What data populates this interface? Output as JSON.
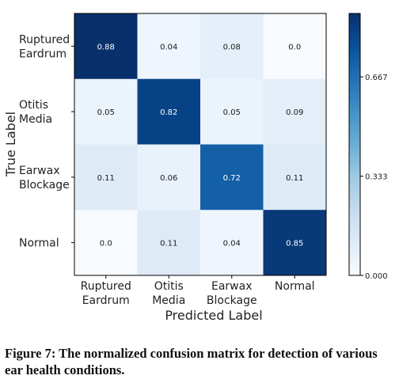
{
  "chart_data": {
    "type": "heatmap",
    "title": "",
    "xlabel": "Predicted Label",
    "ylabel": "True Label",
    "x_categories": [
      [
        "Ruptured",
        "Eardrum"
      ],
      [
        "Otitis",
        "Media"
      ],
      [
        "Earwax",
        "Blockage"
      ],
      [
        "Normal"
      ]
    ],
    "y_categories": [
      [
        "Ruptured",
        "Eardrum"
      ],
      [
        "Otitis",
        "Media"
      ],
      [
        "Earwax",
        "Blockage"
      ],
      [
        "Normal"
      ]
    ],
    "values": [
      [
        0.88,
        0.04,
        0.08,
        0.0
      ],
      [
        0.05,
        0.82,
        0.05,
        0.09
      ],
      [
        0.11,
        0.06,
        0.72,
        0.11
      ],
      [
        0.0,
        0.11,
        0.04,
        0.85
      ]
    ],
    "value_labels": [
      [
        "0.88",
        "0.04",
        "0.08",
        "0.0"
      ],
      [
        "0.05",
        "0.82",
        "0.05",
        "0.09"
      ],
      [
        "0.11",
        "0.06",
        "0.72",
        "0.11"
      ],
      [
        "0.0",
        "0.11",
        "0.04",
        "0.85"
      ]
    ],
    "colormap": "Blues",
    "colorbar": {
      "range": [
        0,
        0.88
      ],
      "ticks": [
        0.0,
        0.333,
        0.667
      ],
      "tick_labels": [
        "0.000",
        "0.333",
        "0.667"
      ]
    }
  },
  "caption": "Figure 7: The normalized confusion matrix for detection of various ear health conditions."
}
